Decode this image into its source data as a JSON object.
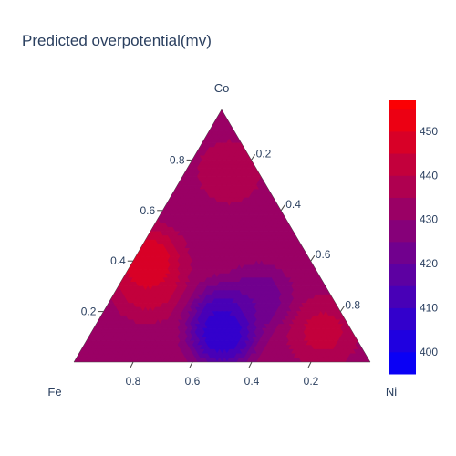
{
  "chart_data": {
    "type": "ternary-contour",
    "title": "Predicted overpotential(mv)",
    "axes": {
      "a": {
        "label": "Co",
        "ticks": [
          "0.2",
          "0.4",
          "0.6",
          "0.8"
        ]
      },
      "b": {
        "label": "Fe",
        "ticks": [
          "0.2",
          "0.4",
          "0.6",
          "0.8"
        ]
      },
      "c": {
        "label": "Ni",
        "ticks": [
          "0.2",
          "0.4",
          "0.6",
          "0.8"
        ]
      }
    },
    "colorbar": {
      "ticks": [
        "400",
        "410",
        "420",
        "430",
        "440",
        "450"
      ],
      "tick_values": [
        400,
        410,
        420,
        430,
        440,
        450
      ],
      "range": [
        395,
        457
      ],
      "colorscale": [
        "#0000ff",
        "#ff0000"
      ]
    },
    "contour_levels": [
      400,
      405,
      410,
      415,
      420,
      425,
      430,
      435,
      440,
      445,
      450,
      455
    ],
    "hotspots": [
      {
        "Co": 0.4,
        "Fe": 0.55,
        "Ni": 0.05,
        "value": 455
      },
      {
        "Co": 0.3,
        "Fe": 0.6,
        "Ni": 0.1,
        "value": 447
      },
      {
        "Co": 0.12,
        "Fe": 0.1,
        "Ni": 0.78,
        "value": 445
      },
      {
        "Co": 0.75,
        "Fe": 0.1,
        "Ni": 0.15,
        "value": 440
      },
      {
        "Co": 0.1,
        "Fe": 0.45,
        "Ni": 0.45,
        "value": 398
      },
      {
        "Co": 0.18,
        "Fe": 0.4,
        "Ni": 0.42,
        "value": 404
      },
      {
        "Co": 0.25,
        "Fe": 0.25,
        "Ni": 0.5,
        "value": 418
      }
    ],
    "base_value": 433
  }
}
